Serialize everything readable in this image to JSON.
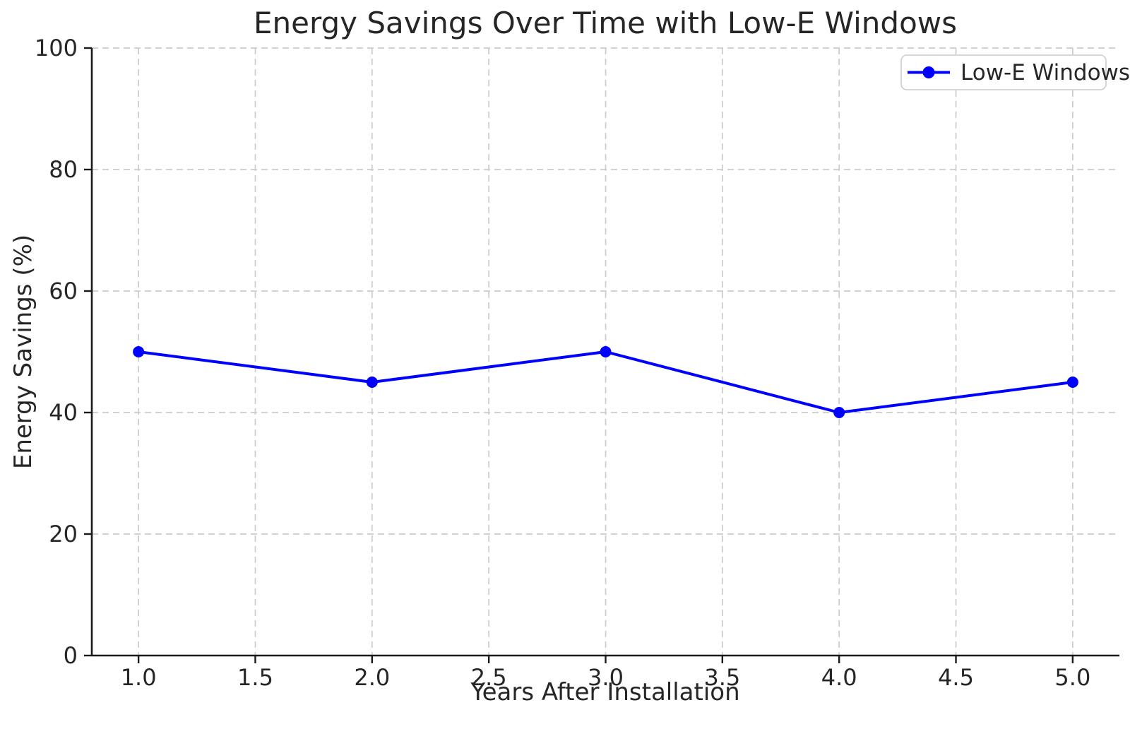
{
  "chart_data": {
    "type": "line",
    "title": "Energy Savings Over Time with Low-E Windows",
    "xlabel": "Years After Installation",
    "ylabel": "Energy Savings (%)",
    "x": [
      1,
      2,
      3,
      4,
      5
    ],
    "series": [
      {
        "name": "Low-E Windows",
        "values": [
          50,
          45,
          50,
          40,
          45
        ],
        "color": "#0000ff",
        "marker": "circle",
        "line_width": 4
      }
    ],
    "xlim": [
      0.8,
      5.2
    ],
    "ylim": [
      0,
      100
    ],
    "xticks": [
      1.0,
      1.5,
      2.0,
      2.5,
      3.0,
      3.5,
      4.0,
      4.5,
      5.0
    ],
    "xtick_labels": [
      "1.0",
      "1.5",
      "2.0",
      "2.5",
      "3.0",
      "3.5",
      "4.0",
      "4.5",
      "5.0"
    ],
    "yticks": [
      0,
      20,
      40,
      60,
      80,
      100
    ],
    "ytick_labels": [
      "0",
      "20",
      "40",
      "60",
      "80",
      "100"
    ],
    "grid": true,
    "grid_style": "dashed",
    "legend_position": "upper right",
    "colors": {
      "line": "#0000ff",
      "grid": "#cccccc",
      "text": "#262626",
      "spine": "#1a1a1a",
      "legend_border": "#cccccc",
      "background": "#ffffff"
    }
  }
}
